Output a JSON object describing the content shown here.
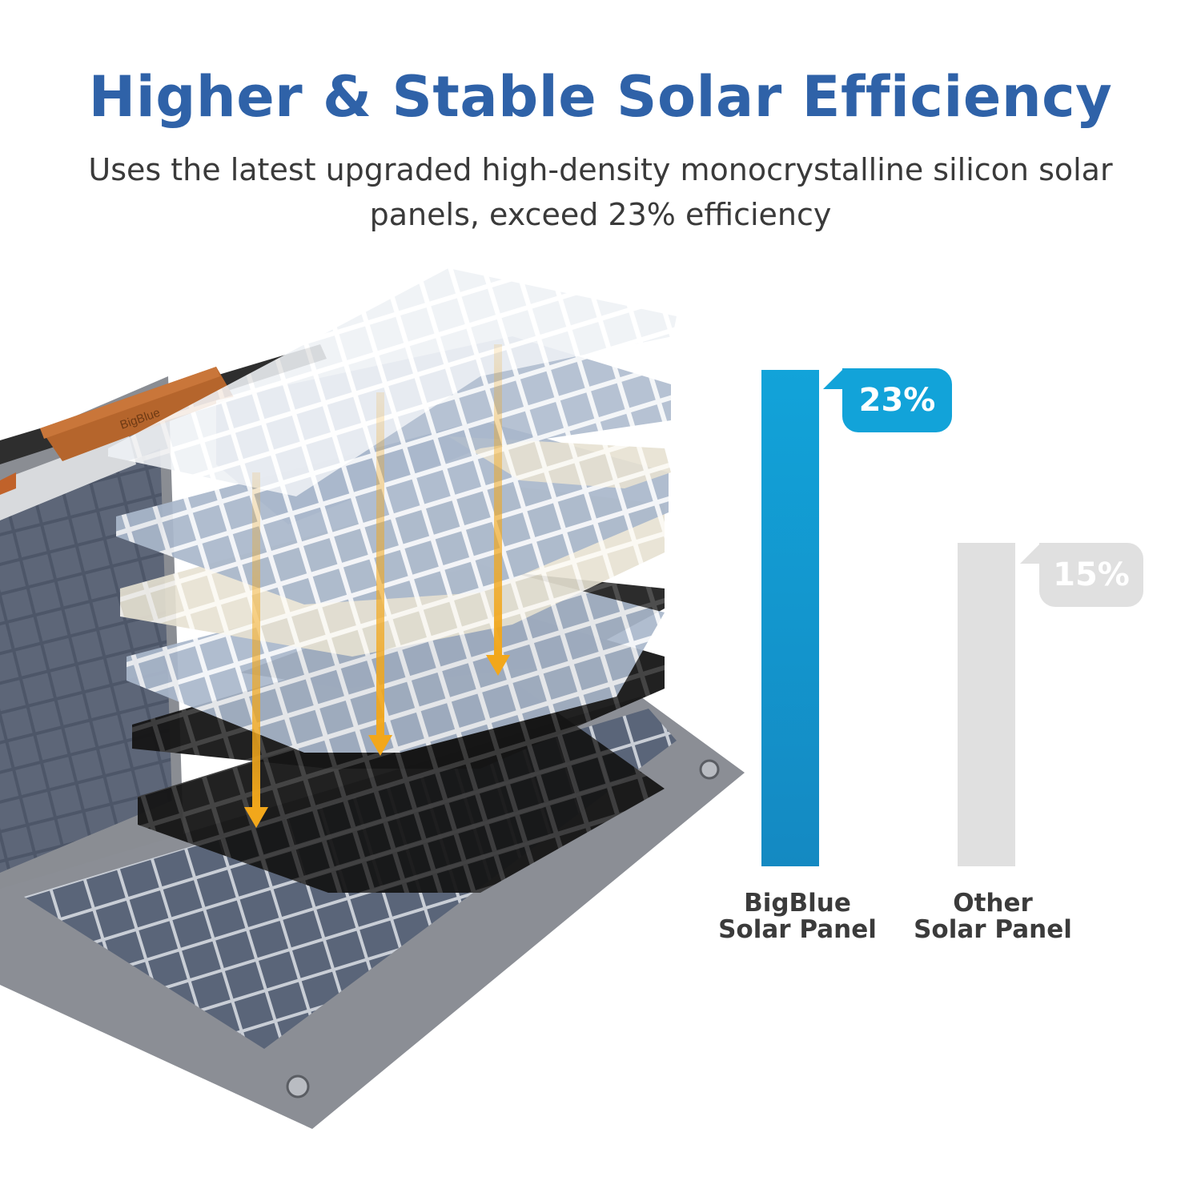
{
  "heading": {
    "title": "Higher & Stable Solar Efficiency",
    "subtitle": "Uses the latest upgraded high-density monocrystalline silicon solar panels, exceed 23% efficiency"
  },
  "chart_data": {
    "type": "bar",
    "categories": [
      "BigBlue Solar Panel",
      "Other Solar Panel"
    ],
    "values": [
      23,
      15
    ],
    "value_labels": [
      "23%",
      "15%"
    ],
    "labels": [
      {
        "line1": "BigBlue",
        "line2": "Solar Panel"
      },
      {
        "line1": "Other",
        "line2": "Solar Panel"
      }
    ],
    "colors": [
      "#12a3d9",
      "#e0e0e0"
    ],
    "ylim": [
      0,
      23
    ],
    "grid": false
  },
  "product": {
    "brand_mark": "BigBlue",
    "arrow_color": "#f2a71b"
  }
}
